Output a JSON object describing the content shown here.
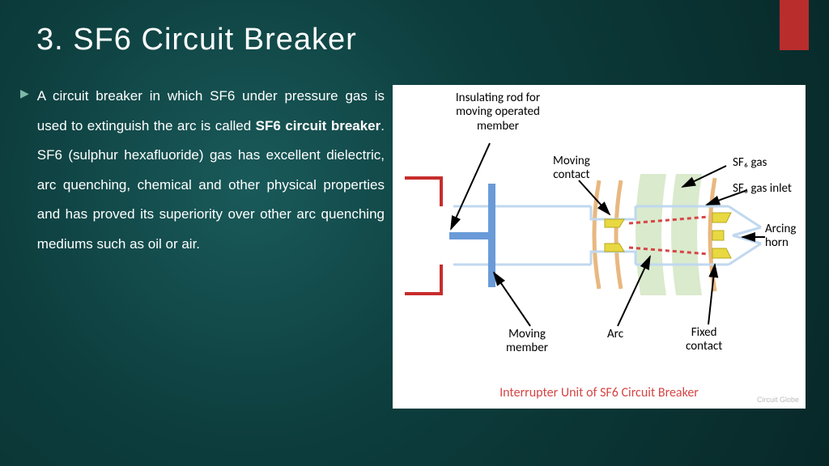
{
  "title": "3. SF6 Circuit Breaker",
  "bullet_glyph": "▶",
  "body_text_pre": "A circuit breaker in which SF6 under pressure gas is used to extinguish the arc is called ",
  "body_text_bold": "SF6 circuit breaker",
  "body_text_post": ". SF6 (sulphur hexafluoride) gas has excellent dielectric, arc quenching, chemical and other physical properties and has proved its superiority over other arc quenching mediums such as oil or air.",
  "diagram": {
    "labels": {
      "insulating_rod": "Insulating rod for\nmoving operated\nmember",
      "moving_contact": "Moving\ncontact",
      "sf6_gas": "SF₆ gas",
      "sf6_inlet": "SF₆ gas inlet",
      "arcing_horn": "Arcing\nhorn",
      "moving_member": "Moving\nmember",
      "arc": "Arc",
      "fixed_contact": "Fixed\ncontact"
    },
    "caption": "Interrupter Unit of SF6 Circuit Breaker",
    "watermark": "Circuit Globe",
    "colors": {
      "background": "#ffffff",
      "terminal_red": "#c72d2d",
      "member_blue": "#6a9bd8",
      "body_light_blue": "#c0d8ef",
      "gas_green": "#d3e6c4",
      "horn_orange": "#e8b880",
      "contact_yellow": "#e8d942",
      "arc_red": "#d64545",
      "arrow_black": "#000000",
      "caption_red": "#d64545"
    },
    "line_widths": {
      "body": 3,
      "terminal": 4,
      "arrow": 2
    },
    "font_sizes": {
      "label": 15,
      "caption": 16
    }
  },
  "accent_color": "#b92d2d",
  "bg_gradient": [
    "#1a5a5a",
    "#0d3d3d",
    "#082828"
  ]
}
